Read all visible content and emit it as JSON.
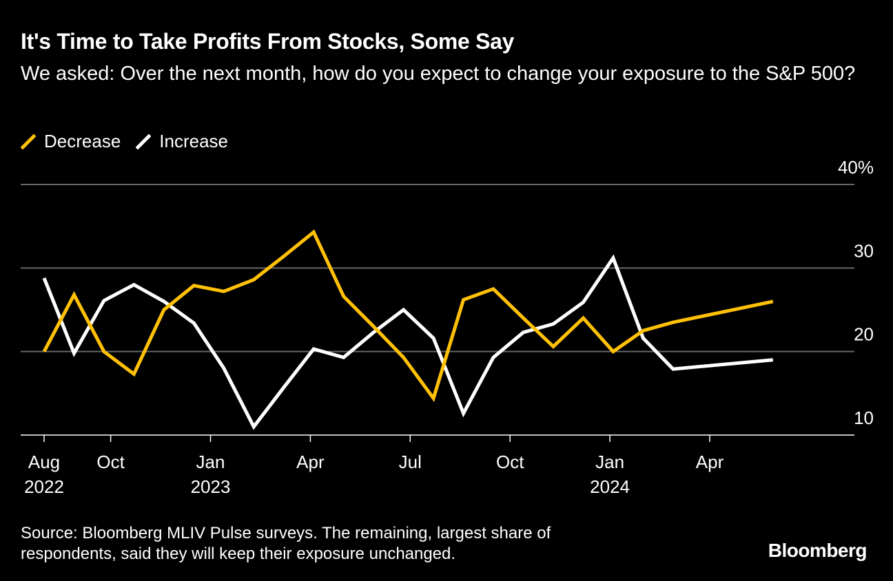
{
  "title": "It's Time to Take Profits From Stocks, Some Say",
  "subtitle": "We asked: Over the next month, how do you expect to change your exposure to the S&P 500?",
  "legend": {
    "decrease": "Decrease",
    "increase": "Increase"
  },
  "colors": {
    "decrease": "#FFC107",
    "increase": "#FFFFFF",
    "grid": "#666666",
    "background": "#000000"
  },
  "source": "Source: Bloomberg MLIV Pulse surveys. The remaining, largest share of respondents, said they will keep their exposure unchanged.",
  "brand": "Bloomberg",
  "chart_data": {
    "type": "line",
    "title": "It's Time to Take Profits From Stocks, Some Say",
    "xlabel": "",
    "ylabel": "",
    "ylim": [
      10,
      40
    ],
    "y_ticks": [
      {
        "value": 40,
        "label": "40%"
      },
      {
        "value": 30,
        "label": "30"
      },
      {
        "value": 20,
        "label": "20"
      },
      {
        "value": 10,
        "label": "10"
      }
    ],
    "x_ticks": [
      {
        "month": 0,
        "label": "Aug",
        "year": "2022"
      },
      {
        "month": 2,
        "label": "Oct",
        "year": ""
      },
      {
        "month": 5,
        "label": "Jan",
        "year": "2023"
      },
      {
        "month": 8,
        "label": "Apr",
        "year": ""
      },
      {
        "month": 11,
        "label": "Jul",
        "year": ""
      },
      {
        "month": 14,
        "label": "Oct",
        "year": ""
      },
      {
        "month": 17,
        "label": "Jan",
        "year": "2024"
      },
      {
        "month": 20,
        "label": "Apr",
        "year": ""
      }
    ],
    "series": [
      {
        "name": "Decrease",
        "x": [
          0,
          0.9,
          1.8,
          2.7,
          3.6,
          4.5,
          5.4,
          6.3,
          7.2,
          8.1,
          9.0,
          9.9,
          10.8,
          11.7,
          12.6,
          13.5,
          14.4,
          15.3,
          16.2,
          17.1,
          18.0,
          18.9,
          21.9
        ],
        "values": [
          20.0,
          26.8,
          20.0,
          17.3,
          25.0,
          27.9,
          27.2,
          28.6,
          31.4,
          34.3,
          26.6,
          23.0,
          19.3,
          14.4,
          26.2,
          27.5,
          24.0,
          20.6,
          24.0,
          20.0,
          22.5,
          23.5,
          26.0
        ]
      },
      {
        "name": "Increase",
        "x": [
          0,
          0.9,
          1.8,
          2.7,
          3.6,
          4.5,
          5.4,
          6.3,
          7.2,
          8.1,
          9.0,
          9.9,
          10.8,
          11.7,
          12.6,
          13.5,
          14.4,
          15.3,
          16.2,
          17.1,
          18.0,
          18.9,
          21.9
        ],
        "values": [
          28.8,
          19.8,
          26.1,
          28.0,
          26.0,
          23.4,
          18.0,
          11.0,
          15.7,
          20.3,
          19.3,
          22.3,
          25.0,
          21.6,
          12.6,
          19.3,
          22.3,
          23.3,
          25.9,
          31.2,
          21.6,
          17.9,
          19.0
        ]
      }
    ]
  }
}
